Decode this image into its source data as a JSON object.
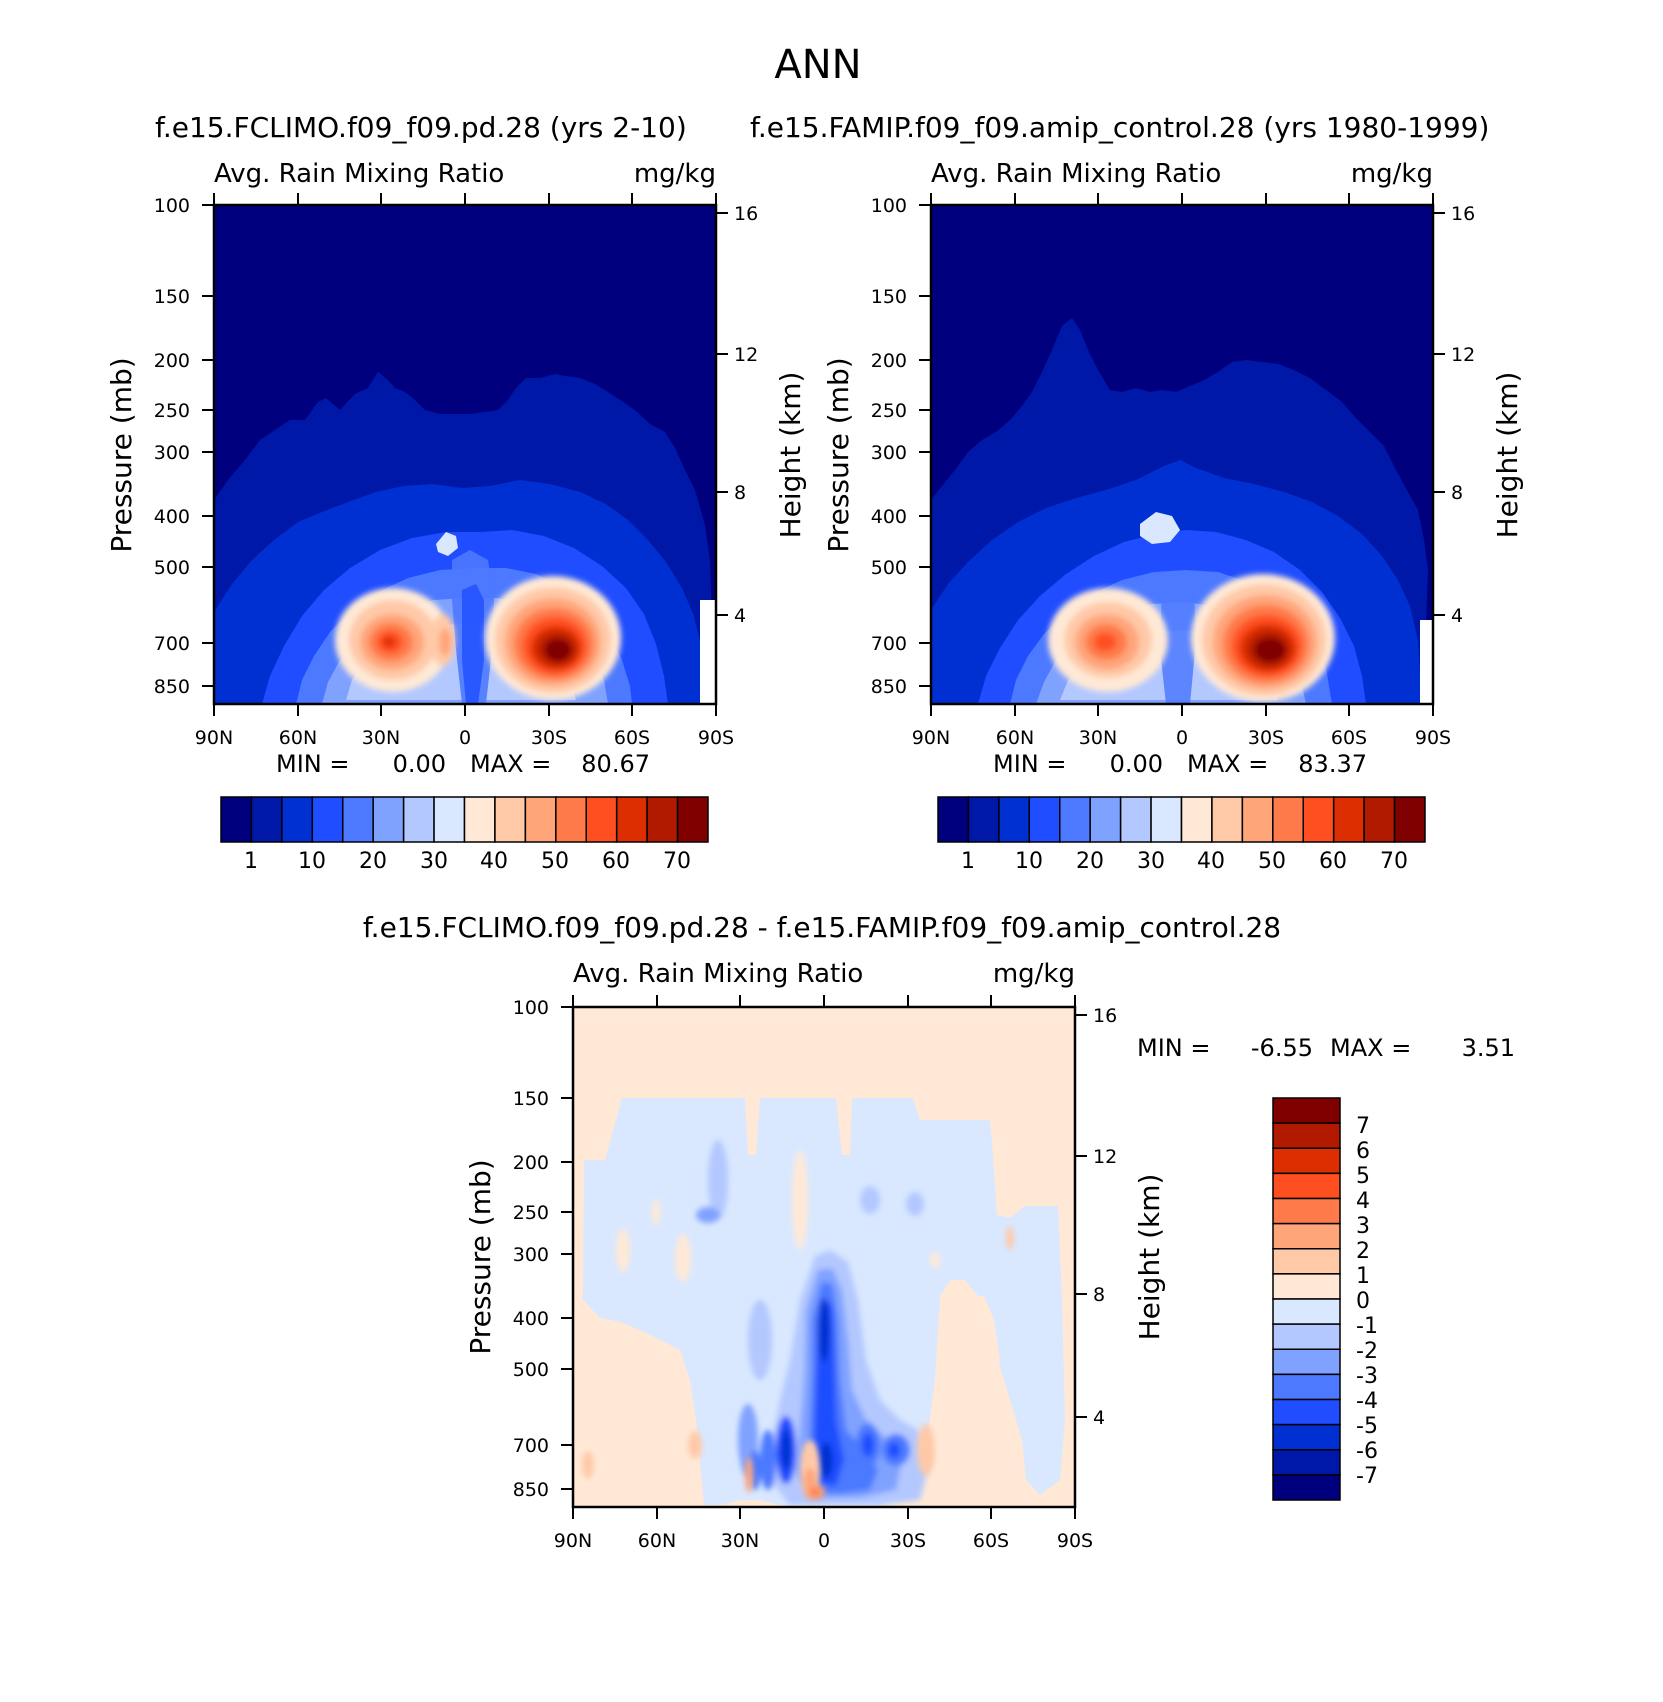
{
  "figure": {
    "title": "ANN"
  },
  "chart_data": [
    {
      "type": "heatmap",
      "title": "f.e15.FCLIMO.f09_f09.pd.28 (yrs 2-10)",
      "subtitle_left": "Avg. Rain Mixing Ratio",
      "subtitle_right": "mg/kg",
      "xlabel": "",
      "ylabel": "Pressure (mb)",
      "y2label": "Height (km)",
      "xticks": [
        "90N",
        "60N",
        "30N",
        "0",
        "30S",
        "60S",
        "90S"
      ],
      "yticks": [
        "100",
        "150",
        "200",
        "250",
        "300",
        "400",
        "500",
        "700",
        "850"
      ],
      "y2ticks": [
        "16",
        "12",
        "8",
        "4"
      ],
      "ylim": [
        100,
        1000
      ],
      "log_y": true,
      "stats": {
        "min_label": "MIN =",
        "min": "0.00",
        "max_label": "MAX =",
        "max": "80.67"
      },
      "colorbar": {
        "labels": [
          "1",
          "10",
          "20",
          "30",
          "40",
          "50",
          "60",
          "70"
        ],
        "colors": [
          "#00007f",
          "#0018a8",
          "#0030d2",
          "#1f4dff",
          "#4c79ff",
          "#80a2ff",
          "#b3c8ff",
          "#d9e8ff",
          "#ffe9d6",
          "#ffc9a8",
          "#ffa57a",
          "#ff7a4a",
          "#ff4f21",
          "#dc2e00",
          "#b21a00",
          "#800000"
        ]
      },
      "features": [
        {
          "lat": 27,
          "p": 700,
          "value": 80.67
        },
        {
          "lat": -31,
          "p": 700,
          "value": 80
        }
      ]
    },
    {
      "type": "heatmap",
      "title": "f.e15.FAMIP.f09_f09.amip_control.28 (yrs 1980-1999)",
      "subtitle_left": "Avg. Rain Mixing Ratio",
      "subtitle_right": "mg/kg",
      "xlabel": "",
      "ylabel": "Pressure (mb)",
      "y2label": "Height (km)",
      "xticks": [
        "90N",
        "60N",
        "30N",
        "0",
        "30S",
        "60S",
        "90S"
      ],
      "yticks": [
        "100",
        "150",
        "200",
        "250",
        "300",
        "400",
        "500",
        "700",
        "850"
      ],
      "y2ticks": [
        "16",
        "12",
        "8",
        "4"
      ],
      "ylim": [
        100,
        1000
      ],
      "log_y": true,
      "stats": {
        "min_label": "MIN =",
        "min": "0.00",
        "max_label": "MAX =",
        "max": "83.37"
      },
      "colorbar": {
        "labels": [
          "1",
          "10",
          "20",
          "30",
          "40",
          "50",
          "60",
          "70"
        ],
        "colors": [
          "#00007f",
          "#0018a8",
          "#0030d2",
          "#1f4dff",
          "#4c79ff",
          "#80a2ff",
          "#b3c8ff",
          "#d9e8ff",
          "#ffe9d6",
          "#ffc9a8",
          "#ffa57a",
          "#ff7a4a",
          "#ff4f21",
          "#dc2e00",
          "#b21a00",
          "#800000"
        ]
      },
      "features": [
        {
          "lat": 27,
          "p": 700,
          "value": 65
        },
        {
          "lat": -31,
          "p": 700,
          "value": 83.37
        }
      ]
    },
    {
      "type": "heatmap",
      "title": "f.e15.FCLIMO.f09_f09.pd.28 - f.e15.FAMIP.f09_f09.amip_control.28",
      "subtitle_left": "Avg. Rain Mixing Ratio",
      "subtitle_right": "mg/kg",
      "xlabel": "",
      "ylabel": "Pressure (mb)",
      "y2label": "Height (km)",
      "xticks": [
        "90N",
        "60N",
        "30N",
        "0",
        "30S",
        "60S",
        "90S"
      ],
      "yticks": [
        "100",
        "150",
        "200",
        "250",
        "300",
        "400",
        "500",
        "700",
        "850"
      ],
      "y2ticks": [
        "16",
        "12",
        "8",
        "4"
      ],
      "ylim": [
        100,
        1000
      ],
      "log_y": true,
      "stats": {
        "min_label": "MIN =",
        "min": "-6.55",
        "max_label": "MAX =",
        "max": "3.51"
      },
      "colorbar": {
        "labels": [
          "7",
          "6",
          "5",
          "4",
          "3",
          "2",
          "1",
          "0",
          "-1",
          "-2",
          "-3",
          "-4",
          "-5",
          "-6",
          "-7"
        ],
        "colors": [
          "#800000",
          "#b21a00",
          "#dc2e00",
          "#ff4f21",
          "#ff7a4a",
          "#ffa57a",
          "#ffc9a8",
          "#ffe9d6",
          "#d9e8ff",
          "#b3c8ff",
          "#80a2ff",
          "#4c79ff",
          "#1f4dff",
          "#0030d2",
          "#0018a8",
          "#00007f"
        ]
      },
      "features": [
        {
          "lat": 0,
          "p": 400,
          "value": -6.55
        },
        {
          "lat": 4,
          "p": 850,
          "value": 3.51
        }
      ]
    }
  ]
}
